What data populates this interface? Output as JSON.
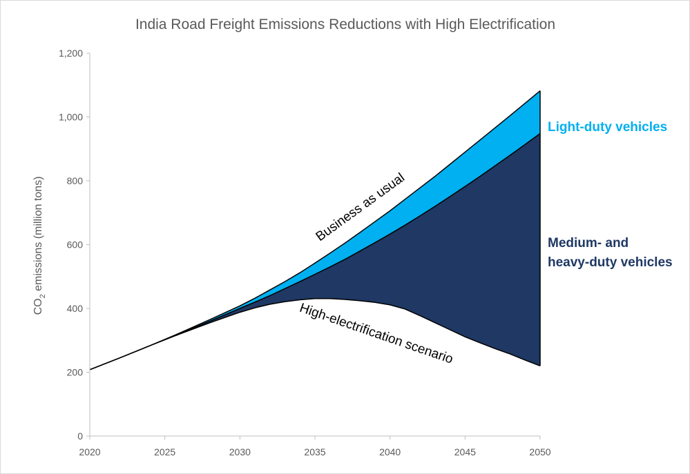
{
  "chart_data": {
    "type": "area",
    "title": "India Road Freight Emissions Reductions with High Electrification",
    "ylabel_prefix": "CO",
    "ylabel_sub": "2",
    "ylabel_suffix": " emissions (million tons)",
    "xlim": [
      2020,
      2050
    ],
    "ylim": [
      0,
      1200
    ],
    "x_ticks": [
      "2020",
      "2025",
      "2030",
      "2035",
      "2040",
      "2045",
      "2050"
    ],
    "y_ticks": [
      "0",
      "200",
      "400",
      "600",
      "800",
      "1,000",
      "1,200"
    ],
    "x": [
      2020,
      2022,
      2024,
      2026,
      2028,
      2030,
      2031,
      2032,
      2033,
      2034,
      2035,
      2036,
      2037,
      2038,
      2039,
      2040,
      2041,
      2042,
      2043,
      2044,
      2045,
      2046,
      2047,
      2048,
      2049,
      2050
    ],
    "series": [
      {
        "name": "Business as usual",
        "values": [
          208,
          245,
          283,
          323,
          365,
          408,
          432,
          458,
          484,
          512,
          542,
          573,
          605,
          638,
          672,
          706,
          742,
          778,
          814,
          852,
          890,
          928,
          966,
          1004,
          1043,
          1082
        ]
      },
      {
        "name": "Medium- and heavy-duty vehicles",
        "values": [
          208,
          245,
          283,
          321,
          360,
          400,
          420,
          440,
          462,
          484,
          507,
          530,
          554,
          580,
          606,
          633,
          661,
          690,
          720,
          751,
          782,
          814,
          847,
          880,
          914,
          948
        ]
      },
      {
        "name": "High-electrification scenario",
        "values": [
          208,
          245,
          283,
          320,
          355,
          388,
          402,
          413,
          421,
          427,
          431,
          431,
          428,
          424,
          419,
          411,
          398,
          377,
          355,
          333,
          311,
          292,
          274,
          257,
          238,
          220
        ]
      }
    ],
    "labels": {
      "ldv": "Light-duty vehicles",
      "mhdv_line1": "Medium- and",
      "mhdv_line2": "heavy-duty vehicles",
      "bau": "Business as usual",
      "high_elec": "High-electrification scenario"
    },
    "colors": {
      "ldv": "#00b0f0",
      "mhdv": "#1f3864",
      "ldv_label": "#00b0f0",
      "mhdv_label": "#1f3864"
    },
    "grid": false,
    "legend": "none"
  }
}
